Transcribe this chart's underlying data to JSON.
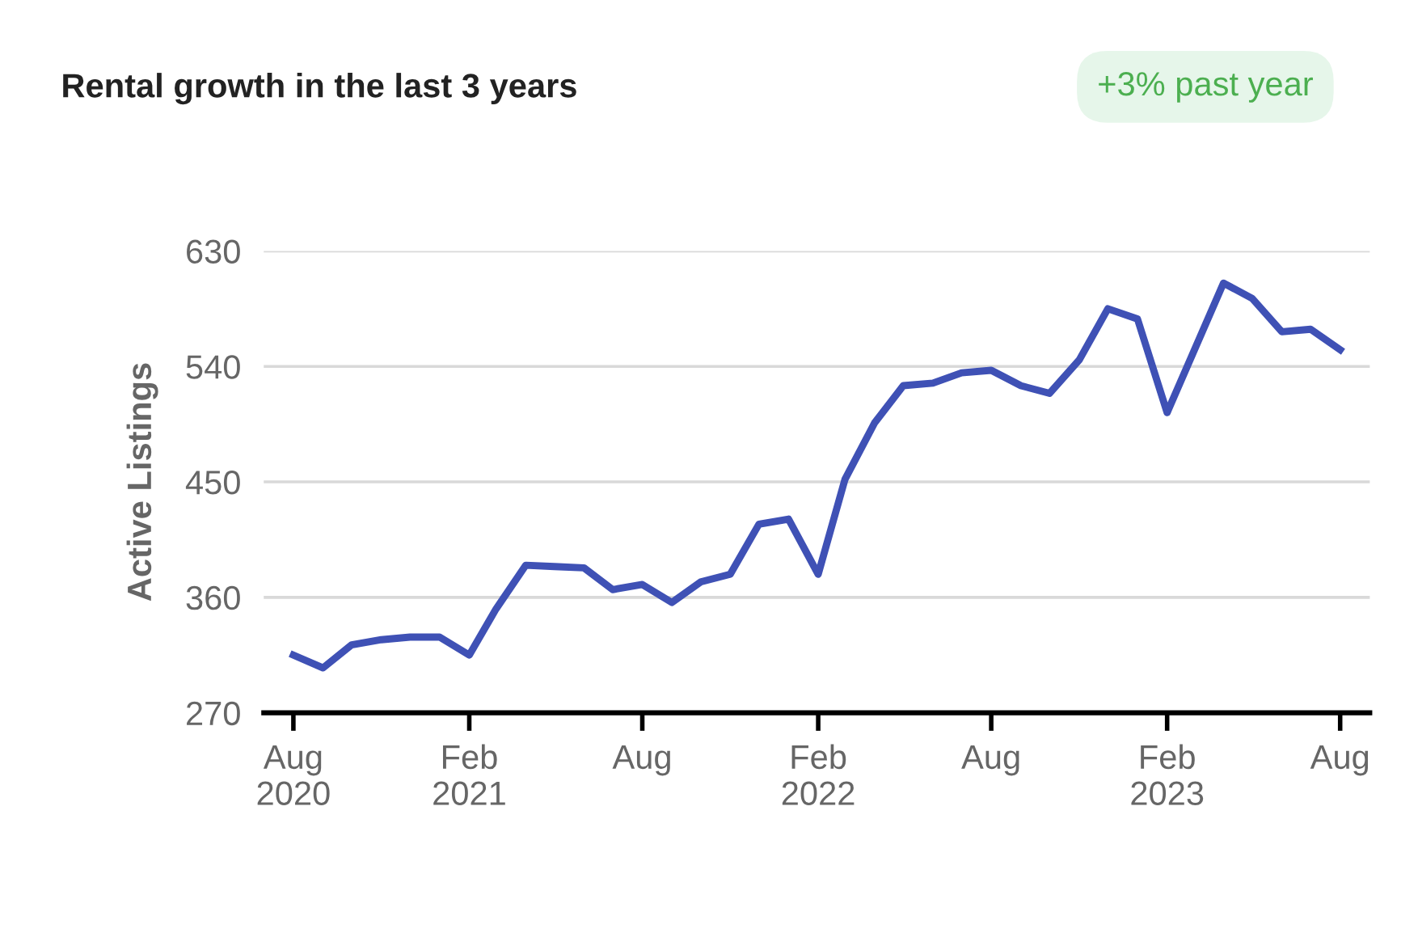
{
  "chart_data": {
    "type": "line",
    "title": "Rental growth in the last 3 years",
    "ylabel": "Active Listings",
    "annotations": [
      "+3% past year"
    ],
    "x": [
      "2020-08",
      "2020-09",
      "2020-10",
      "2020-11",
      "2020-12",
      "2021-01",
      "2021-02",
      "2021-03",
      "2021-04",
      "2021-05",
      "2021-06",
      "2021-07",
      "2021-08",
      "2021-09",
      "2021-10",
      "2021-11",
      "2021-12",
      "2022-01",
      "2022-02",
      "2022-03",
      "2022-04",
      "2022-05",
      "2022-06",
      "2022-07",
      "2022-08",
      "2022-09",
      "2022-10",
      "2022-11",
      "2022-12",
      "2023-01",
      "2023-02",
      "2023-03",
      "2023-04",
      "2023-05",
      "2023-06",
      "2023-07",
      "2023-08"
    ],
    "series": [
      {
        "color": "#3f51b5",
        "values": [
          315,
          305,
          323,
          327,
          329,
          329,
          315,
          351,
          385,
          384,
          383,
          366,
          370,
          356,
          372,
          378,
          417,
          421,
          378,
          452,
          496,
          525,
          527,
          535,
          537,
          525,
          519,
          545,
          585,
          577,
          504,
          552,
          605,
          593,
          567,
          569,
          553
        ]
      }
    ],
    "xlim": [
      "2020-07",
      "2023-09"
    ],
    "xticks": [
      {
        "value": "2020-08",
        "label": "Aug\n2020"
      },
      {
        "value": "2021-02",
        "label": "Feb\n2021"
      },
      {
        "value": "2021-08",
        "label": "Aug"
      },
      {
        "value": "2022-02",
        "label": "Feb\n2022"
      },
      {
        "value": "2022-08",
        "label": "Aug"
      },
      {
        "value": "2023-02",
        "label": "Feb\n2023"
      },
      {
        "value": "2023-08",
        "label": "Aug"
      }
    ],
    "ylim": [
      270,
      630
    ],
    "yticks": [
      270,
      360,
      450,
      540,
      630
    ],
    "grid": "y",
    "marker": "none",
    "line_style": "solid"
  }
}
